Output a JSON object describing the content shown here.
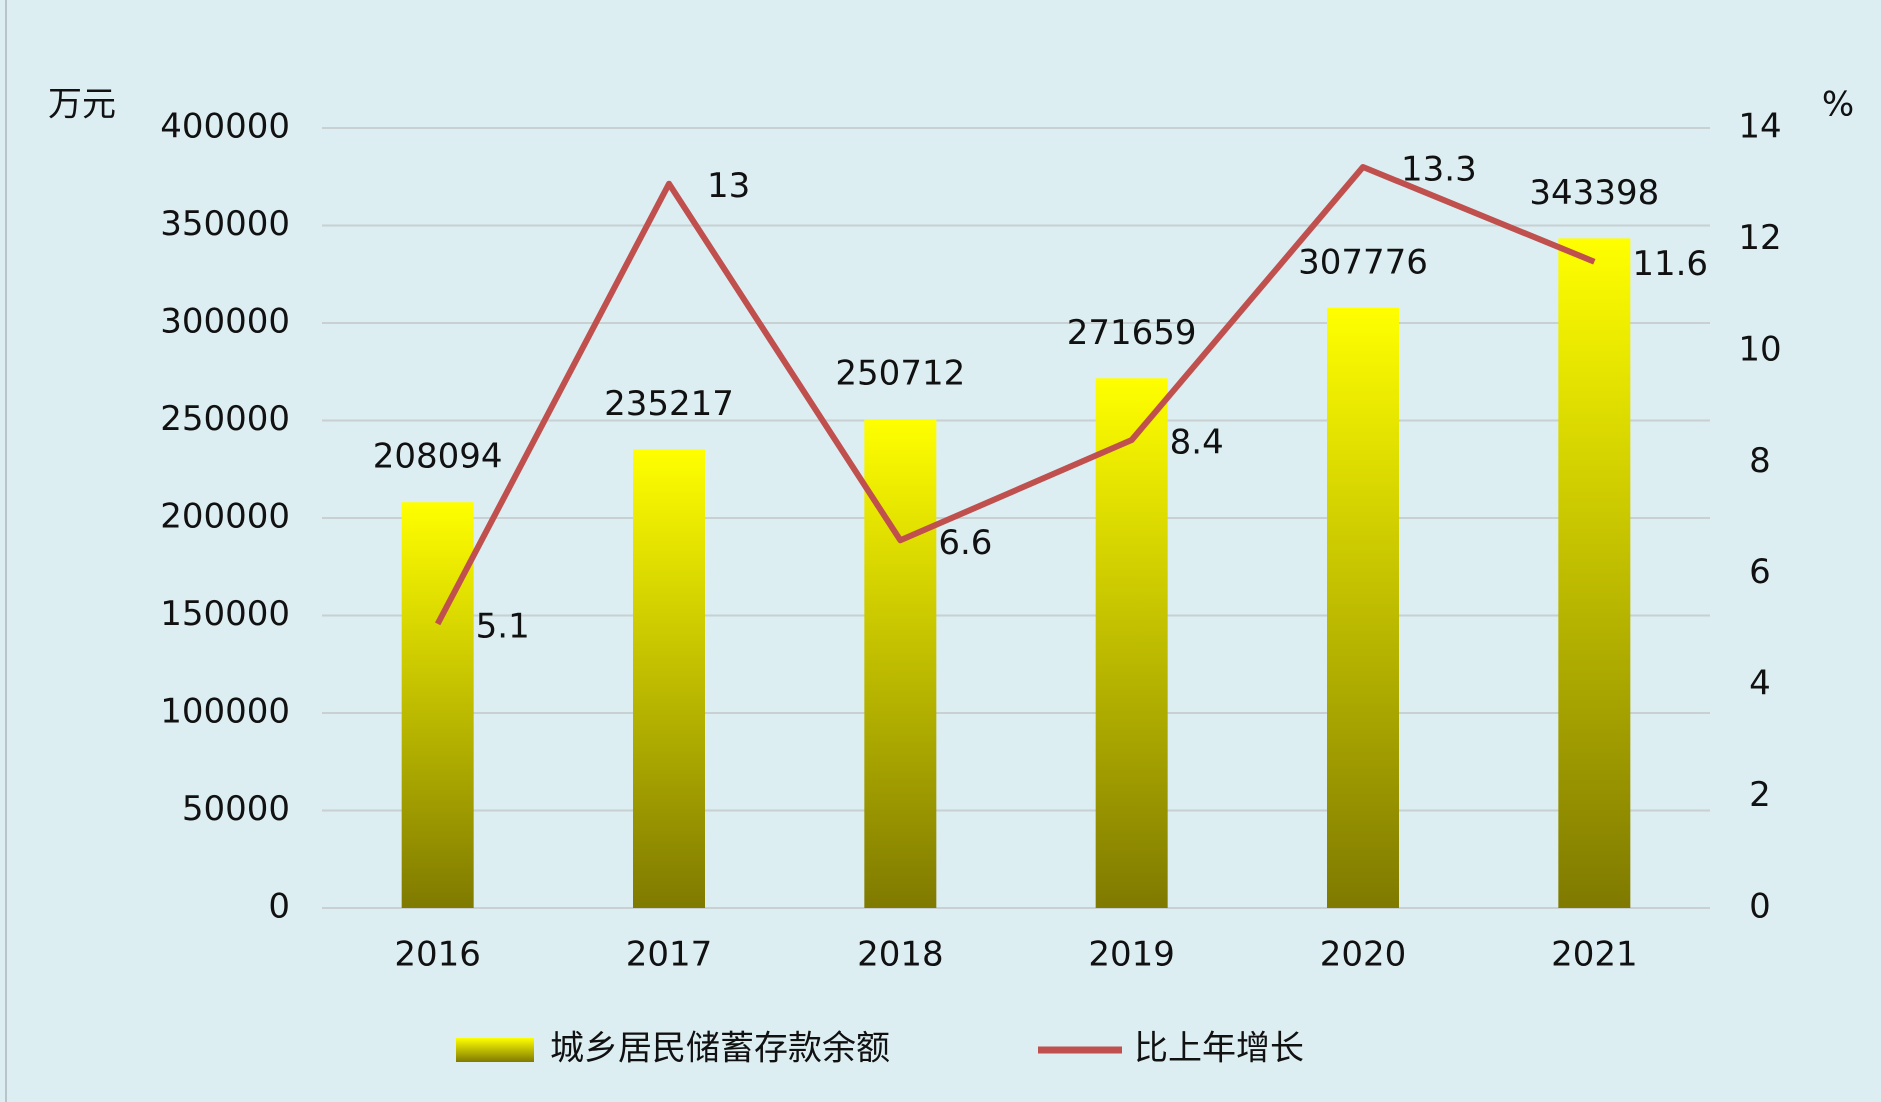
{
  "chart_data": {
    "type": "bar",
    "y_unit": "万元",
    "y2_unit": "%",
    "categories": [
      "2016",
      "2017",
      "2018",
      "2019",
      "2020",
      "2021"
    ],
    "series": [
      {
        "name": "城乡居民储蓄存款余额",
        "type": "bar",
        "color": "#ffff00",
        "values": [
          208094,
          235217,
          250712,
          271659,
          307776,
          343398
        ]
      },
      {
        "name": "比上年增长",
        "type": "line",
        "axis": "y2",
        "color": "#c0504d",
        "values": [
          5.1,
          13,
          6.6,
          8.4,
          13.3,
          11.6
        ]
      }
    ],
    "ylim": [
      0,
      400000
    ],
    "yticks": [
      0,
      50000,
      100000,
      150000,
      200000,
      250000,
      300000,
      350000,
      400000
    ],
    "y2lim": [
      0,
      14
    ],
    "y2ticks": [
      0,
      2,
      4,
      6,
      8,
      10,
      12,
      14
    ],
    "grid": true,
    "legend": "bottom"
  }
}
